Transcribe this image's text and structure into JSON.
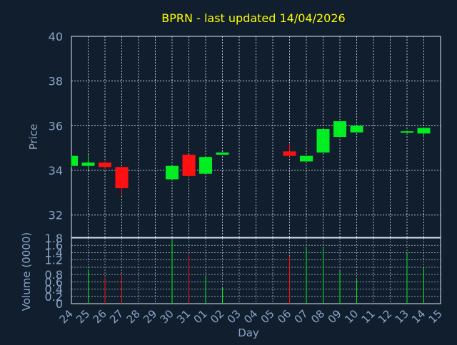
{
  "title": "BPRN - last updated 14/04/2026",
  "colors": {
    "background": "#111e2e",
    "title": "#ffff00",
    "axis_text": "#8aa5c8",
    "grid": "#dce6f2",
    "frame": "#dce6f2",
    "up": "#00ee22",
    "down": "#ff1111",
    "volume_line": "#6f88aa"
  },
  "chart_data": [
    {
      "type": "candlestick",
      "ylabel": "Price",
      "ylim": [
        31,
        40
      ],
      "yticks": [
        "32",
        "34",
        "36",
        "38",
        "40"
      ],
      "grid": true,
      "categories": [
        "24",
        "25",
        "26",
        "27",
        "28",
        "29",
        "30",
        "31",
        "01",
        "02",
        "03",
        "04",
        "05",
        "06",
        "07",
        "08",
        "09",
        "10",
        "11",
        "12",
        "13",
        "14",
        "15"
      ],
      "candles": [
        {
          "x": "24",
          "open": 34.2,
          "high": 34.65,
          "low": 34.15,
          "close": 34.65
        },
        {
          "x": "25",
          "open": 34.2,
          "high": 34.7,
          "low": 34.0,
          "close": 34.35
        },
        {
          "x": "26",
          "open": 34.35,
          "high": 34.4,
          "low": 34.05,
          "close": 34.15
        },
        {
          "x": "27",
          "open": 34.15,
          "high": 34.15,
          "low": 32.85,
          "close": 33.2
        },
        {
          "x": "30",
          "open": 33.6,
          "high": 34.2,
          "low": 33.6,
          "close": 34.2
        },
        {
          "x": "31",
          "open": 34.7,
          "high": 34.7,
          "low": 33.7,
          "close": 33.75
        },
        {
          "x": "01",
          "open": 33.85,
          "high": 34.6,
          "low": 33.85,
          "close": 34.6
        },
        {
          "x": "02",
          "open": 34.7,
          "high": 34.8,
          "low": 34.7,
          "close": 34.8
        },
        {
          "x": "06",
          "open": 34.85,
          "high": 35.2,
          "low": 34.6,
          "close": 34.65
        },
        {
          "x": "07",
          "open": 34.4,
          "high": 34.65,
          "low": 34.4,
          "close": 34.65
        },
        {
          "x": "08",
          "open": 34.8,
          "high": 35.85,
          "low": 34.8,
          "close": 35.85
        },
        {
          "x": "09",
          "open": 35.5,
          "high": 36.2,
          "low": 35.5,
          "close": 36.2
        },
        {
          "x": "10",
          "open": 35.7,
          "high": 36.0,
          "low": 35.7,
          "close": 36.0
        },
        {
          "x": "13",
          "open": 35.7,
          "high": 35.8,
          "low": 35.6,
          "close": 35.75
        },
        {
          "x": "14",
          "open": 35.65,
          "high": 35.9,
          "low": 35.5,
          "close": 35.9
        }
      ]
    },
    {
      "type": "bar",
      "ylabel": "Volume (0000)",
      "ylim": [
        0,
        1.8
      ],
      "yticks": [
        "0",
        "0.2",
        "0.4",
        "0.6",
        "0.8",
        "1.2",
        "1.4",
        "1.6",
        "1.8"
      ],
      "xlabel": "Day",
      "categories": [
        "24",
        "25",
        "26",
        "27",
        "28",
        "29",
        "30",
        "31",
        "01",
        "02",
        "03",
        "04",
        "05",
        "06",
        "07",
        "08",
        "09",
        "10",
        "11",
        "12",
        "13",
        "14",
        "15"
      ],
      "bars": [
        {
          "x": "25",
          "value": 0.95,
          "direction": "up"
        },
        {
          "x": "26",
          "value": 0.72,
          "direction": "down"
        },
        {
          "x": "27",
          "value": 0.78,
          "direction": "down"
        },
        {
          "x": "30",
          "value": 1.75,
          "direction": "up"
        },
        {
          "x": "31",
          "value": 1.35,
          "direction": "down"
        },
        {
          "x": "01",
          "value": 0.75,
          "direction": "up"
        },
        {
          "x": "02",
          "value": 0.45,
          "direction": "up"
        },
        {
          "x": "06",
          "value": 1.3,
          "direction": "down"
        },
        {
          "x": "07",
          "value": 1.55,
          "direction": "up"
        },
        {
          "x": "08",
          "value": 1.52,
          "direction": "up"
        },
        {
          "x": "09",
          "value": 0.9,
          "direction": "up"
        },
        {
          "x": "10",
          "value": 0.68,
          "direction": "up"
        },
        {
          "x": "13",
          "value": 1.38,
          "direction": "up"
        },
        {
          "x": "14",
          "value": 0.98,
          "direction": "up"
        }
      ]
    }
  ]
}
